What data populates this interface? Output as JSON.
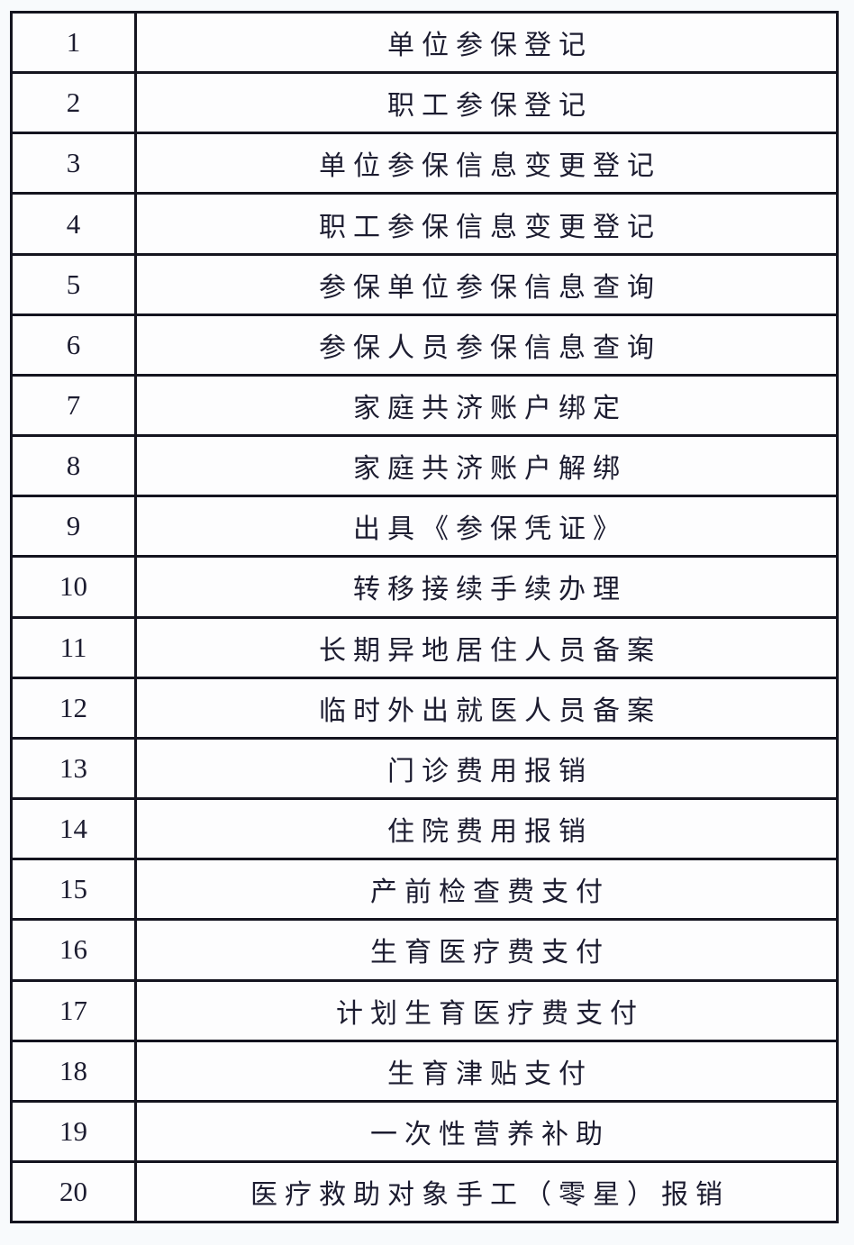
{
  "table": {
    "rows": [
      {
        "no": "1",
        "item": "单位参保登记"
      },
      {
        "no": "2",
        "item": "职工参保登记"
      },
      {
        "no": "3",
        "item": "单位参保信息变更登记"
      },
      {
        "no": "4",
        "item": "职工参保信息变更登记"
      },
      {
        "no": "5",
        "item": "参保单位参保信息查询"
      },
      {
        "no": "6",
        "item": "参保人员参保信息查询"
      },
      {
        "no": "7",
        "item": "家庭共济账户绑定"
      },
      {
        "no": "8",
        "item": "家庭共济账户解绑"
      },
      {
        "no": "9",
        "item": "出具《参保凭证》"
      },
      {
        "no": "10",
        "item": "转移接续手续办理"
      },
      {
        "no": "11",
        "item": "长期异地居住人员备案"
      },
      {
        "no": "12",
        "item": "临时外出就医人员备案"
      },
      {
        "no": "13",
        "item": "门诊费用报销"
      },
      {
        "no": "14",
        "item": "住院费用报销"
      },
      {
        "no": "15",
        "item": "产前检查费支付"
      },
      {
        "no": "16",
        "item": "生育医疗费支付"
      },
      {
        "no": "17",
        "item": "计划生育医疗费支付"
      },
      {
        "no": "18",
        "item": "生育津贴支付"
      },
      {
        "no": "19",
        "item": "一次性营养补助"
      },
      {
        "no": "20",
        "item": "医疗救助对象手工（零星）报销"
      }
    ]
  },
  "colors": {
    "border": "#14141f",
    "text": "#1c1c30",
    "page_bg": "#f8fafc",
    "cell_bg": "#fdfdfe"
  }
}
